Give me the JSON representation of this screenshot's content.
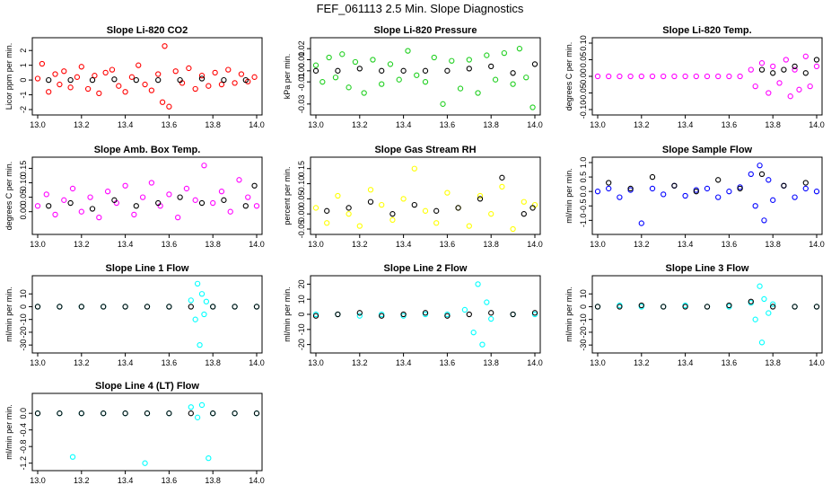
{
  "title": "FEF_061113  2.5 Min. Slope Diagnostics",
  "colors": {
    "red": "#ff0000",
    "green": "#1fcf1f",
    "magenta": "#ff00ff",
    "yellow": "#ffff00",
    "blue": "#0000ff",
    "cyan": "#00ffff",
    "black": "#000000"
  },
  "chart_data": [
    {
      "type": "scatter",
      "title": "Slope Li-820 CO2",
      "ylabel": "Licor ppm per min.",
      "xlim": [
        13.0,
        14.0
      ],
      "ylim": [
        -2,
        2.5
      ],
      "xticks": [
        "13.0",
        "13.2",
        "13.4",
        "13.6",
        "13.8",
        "14.0"
      ],
      "yticks": [
        "-2",
        "-1",
        "0",
        "1",
        "2"
      ],
      "series": [
        {
          "color": "red",
          "x": [
            13.0,
            13.02,
            13.05,
            13.08,
            13.1,
            13.12,
            13.15,
            13.18,
            13.2,
            13.23,
            13.26,
            13.28,
            13.31,
            13.34,
            13.37,
            13.4,
            13.43,
            13.46,
            13.49,
            13.52,
            13.55,
            13.57,
            13.58,
            13.6,
            13.63,
            13.66,
            13.69,
            13.72,
            13.75,
            13.78,
            13.81,
            13.84,
            13.87,
            13.9,
            13.93,
            13.96,
            13.99
          ],
          "y": [
            0.1,
            1.1,
            -0.8,
            0.4,
            -0.3,
            0.6,
            -0.5,
            0.2,
            0.9,
            -0.6,
            0.3,
            -0.9,
            0.5,
            0.7,
            -0.4,
            -0.8,
            0.2,
            1.0,
            -0.3,
            -0.7,
            0.4,
            -1.5,
            2.3,
            -1.8,
            0.6,
            -0.2,
            0.8,
            -0.6,
            0.3,
            -0.4,
            0.5,
            -0.3,
            0.7,
            -0.2,
            0.4,
            -0.1,
            0.2
          ]
        },
        {
          "color": "black",
          "x": [
            13.05,
            13.15,
            13.25,
            13.35,
            13.45,
            13.55,
            13.65,
            13.75,
            13.85,
            13.95
          ],
          "y": [
            0,
            0,
            0,
            0.05,
            0,
            0,
            0,
            0.1,
            0,
            0
          ]
        }
      ]
    },
    {
      "type": "scatter",
      "title": "Slope Li-820 Pressure",
      "ylabel": "kPa per min.",
      "xlim": [
        13.0,
        14.0
      ],
      "ylim": [
        -0.035,
        0.025
      ],
      "xticks": [
        "13.0",
        "13.2",
        "13.4",
        "13.6",
        "13.8",
        "14.0"
      ],
      "yticks": [
        "-0.03",
        "-0.01",
        "0.00",
        "0.01",
        "0.02"
      ],
      "series": [
        {
          "color": "green",
          "x": [
            13.0,
            13.03,
            13.06,
            13.09,
            13.12,
            13.15,
            13.18,
            13.22,
            13.26,
            13.3,
            13.34,
            13.38,
            13.42,
            13.46,
            13.5,
            13.54,
            13.58,
            13.62,
            13.66,
            13.7,
            13.74,
            13.78,
            13.82,
            13.86,
            13.9,
            13.93,
            13.96,
            13.99
          ],
          "y": [
            0.005,
            -0.01,
            0.012,
            -0.006,
            0.015,
            -0.015,
            0.008,
            -0.02,
            0.01,
            -0.012,
            0.006,
            -0.008,
            0.018,
            -0.004,
            -0.01,
            0.012,
            -0.03,
            0.009,
            -0.016,
            0.01,
            -0.02,
            0.014,
            -0.008,
            0.016,
            -0.012,
            0.02,
            -0.006,
            -0.033
          ]
        },
        {
          "color": "black",
          "x": [
            13.0,
            13.1,
            13.2,
            13.3,
            13.4,
            13.5,
            13.6,
            13.7,
            13.8,
            13.9,
            14.0
          ],
          "y": [
            0,
            0,
            0.002,
            0,
            0,
            0,
            0,
            0.002,
            0.004,
            -0.002,
            0.006
          ]
        }
      ]
    },
    {
      "type": "scatter",
      "title": "Slope Li-820 Temp.",
      "ylabel": "degrees C per min.",
      "xlim": [
        13.0,
        14.0
      ],
      "ylim": [
        -0.1,
        0.1
      ],
      "xticks": [
        "13.0",
        "13.2",
        "13.4",
        "13.6",
        "13.8",
        "14.0"
      ],
      "yticks": [
        "-0.10",
        "-0.05",
        "0.00",
        "0.05",
        "0.10"
      ],
      "series": [
        {
          "color": "magenta",
          "x": [
            13.0,
            13.05,
            13.1,
            13.15,
            13.2,
            13.25,
            13.3,
            13.35,
            13.4,
            13.45,
            13.5,
            13.55,
            13.6,
            13.65,
            13.7,
            13.72,
            13.75,
            13.78,
            13.8,
            13.83,
            13.86,
            13.88,
            13.9,
            13.92,
            13.95,
            13.97,
            14.0
          ],
          "y": [
            0,
            0,
            0,
            0,
            0,
            0,
            0,
            0,
            0,
            0,
            0,
            0,
            0,
            0,
            0.02,
            -0.03,
            0.04,
            -0.05,
            0.03,
            -0.02,
            0.05,
            -0.06,
            0.02,
            -0.04,
            0.06,
            -0.03,
            0.03
          ]
        },
        {
          "color": "black",
          "x": [
            13.75,
            13.8,
            13.85,
            13.9,
            13.95,
            14.0
          ],
          "y": [
            0.02,
            0.01,
            0.02,
            0.03,
            0.01,
            0.05
          ]
        }
      ]
    },
    {
      "type": "scatter",
      "title": "Slope Amb. Box Temp.",
      "ylabel": "degrees C per min.",
      "xlim": [
        13.0,
        14.0
      ],
      "ylim": [
        -0.06,
        0.17
      ],
      "xticks": [
        "13.0",
        "13.2",
        "13.4",
        "13.6",
        "13.8",
        "14.0"
      ],
      "yticks": [
        "0.00",
        "0.05",
        "0.10",
        "0.15"
      ],
      "series": [
        {
          "color": "magenta",
          "x": [
            13.0,
            13.04,
            13.08,
            13.12,
            13.16,
            13.2,
            13.24,
            13.28,
            13.32,
            13.36,
            13.4,
            13.44,
            13.48,
            13.52,
            13.56,
            13.6,
            13.64,
            13.68,
            13.72,
            13.76,
            13.8,
            13.84,
            13.88,
            13.92,
            13.96,
            14.0
          ],
          "y": [
            0.02,
            0.06,
            -0.01,
            0.04,
            0.08,
            0.0,
            0.05,
            -0.02,
            0.07,
            0.03,
            0.09,
            -0.01,
            0.05,
            0.1,
            0.02,
            0.06,
            -0.02,
            0.08,
            0.04,
            0.16,
            0.03,
            0.07,
            0.0,
            0.11,
            0.05,
            0.02
          ]
        },
        {
          "color": "black",
          "x": [
            13.05,
            13.15,
            13.25,
            13.35,
            13.45,
            13.55,
            13.65,
            13.75,
            13.85,
            13.95,
            13.99
          ],
          "y": [
            0.02,
            0.03,
            0.01,
            0.04,
            0.02,
            0.03,
            0.05,
            0.03,
            0.04,
            0.02,
            0.09
          ]
        }
      ]
    },
    {
      "type": "scatter",
      "title": "Slope Gas Stream RH",
      "ylabel": "percent per min.",
      "xlim": [
        13.0,
        14.0
      ],
      "ylim": [
        -0.05,
        0.17
      ],
      "xticks": [
        "13.0",
        "13.2",
        "13.4",
        "13.6",
        "13.8",
        "14.0"
      ],
      "yticks": [
        "-0.05",
        "0.00",
        "0.05",
        "0.10",
        "0.15"
      ],
      "series": [
        {
          "color": "yellow",
          "x": [
            13.0,
            13.05,
            13.1,
            13.15,
            13.2,
            13.25,
            13.3,
            13.35,
            13.4,
            13.45,
            13.5,
            13.55,
            13.6,
            13.65,
            13.7,
            13.75,
            13.8,
            13.85,
            13.9,
            13.95,
            14.0
          ],
          "y": [
            0.02,
            -0.03,
            0.06,
            0.0,
            -0.04,
            0.08,
            0.03,
            -0.02,
            0.05,
            0.15,
            0.01,
            -0.03,
            0.07,
            0.02,
            -0.04,
            0.06,
            0.0,
            0.09,
            -0.05,
            0.04,
            0.03
          ]
        },
        {
          "color": "black",
          "x": [
            13.05,
            13.15,
            13.25,
            13.35,
            13.45,
            13.55,
            13.65,
            13.75,
            13.85,
            13.95,
            13.99
          ],
          "y": [
            0.01,
            0.02,
            0.04,
            0.0,
            0.03,
            0.01,
            0.02,
            0.05,
            0.12,
            0.0,
            0.02
          ]
        }
      ]
    },
    {
      "type": "scatter",
      "title": "Slope Sample Flow",
      "ylabel": "ml/min per min.",
      "xlim": [
        13.0,
        14.0
      ],
      "ylim": [
        -1.3,
        1.0
      ],
      "xticks": [
        "13.0",
        "13.2",
        "13.4",
        "13.6",
        "13.8",
        "14.0"
      ],
      "yticks": [
        "-1.0",
        "-0.5",
        "0.0",
        "0.5",
        "1.0"
      ],
      "series": [
        {
          "color": "blue",
          "x": [
            13.0,
            13.05,
            13.1,
            13.15,
            13.2,
            13.25,
            13.3,
            13.35,
            13.4,
            13.45,
            13.5,
            13.55,
            13.6,
            13.65,
            13.7,
            13.72,
            13.74,
            13.76,
            13.78,
            13.8,
            13.85,
            13.9,
            13.95,
            14.0
          ],
          "y": [
            0.0,
            0.1,
            -0.2,
            0.05,
            -1.1,
            0.1,
            -0.1,
            0.2,
            -0.15,
            0.05,
            0.1,
            -0.2,
            0.0,
            0.15,
            0.6,
            -0.5,
            0.9,
            -1.0,
            0.4,
            -0.3,
            0.2,
            -0.2,
            0.1,
            0.0
          ]
        },
        {
          "color": "black",
          "x": [
            13.05,
            13.15,
            13.25,
            13.35,
            13.45,
            13.55,
            13.65,
            13.75,
            13.85,
            13.95
          ],
          "y": [
            0.3,
            0.1,
            0.5,
            0.2,
            0.0,
            0.4,
            0.1,
            0.6,
            0.2,
            0.3
          ]
        }
      ]
    },
    {
      "type": "scatter",
      "title": "Slope Line 1 Flow",
      "ylabel": "ml/min per min.",
      "xlim": [
        13.0,
        14.0
      ],
      "ylim": [
        -32,
        20
      ],
      "xticks": [
        "13.0",
        "13.2",
        "13.4",
        "13.6",
        "13.8",
        "14.0"
      ],
      "yticks": [
        "-30",
        "-20",
        "-10",
        "0",
        "10"
      ],
      "series": [
        {
          "color": "cyan",
          "x": [
            13.0,
            13.1,
            13.2,
            13.3,
            13.4,
            13.5,
            13.6,
            13.7,
            13.72,
            13.73,
            13.74,
            13.75,
            13.76,
            13.77,
            13.8,
            13.9,
            14.0
          ],
          "y": [
            0,
            0,
            0,
            0,
            0,
            0,
            0,
            5,
            -10,
            18,
            -30,
            10,
            -6,
            4,
            0,
            0,
            0
          ]
        },
        {
          "color": "black",
          "x": [
            13.0,
            13.1,
            13.2,
            13.3,
            13.4,
            13.5,
            13.6,
            13.7,
            13.8,
            13.9,
            14.0
          ],
          "y": [
            0,
            0,
            0,
            0,
            0,
            0,
            0,
            0,
            0,
            0,
            0
          ]
        }
      ]
    },
    {
      "type": "scatter",
      "title": "Slope Line 2 Flow",
      "ylabel": "ml/min per min.",
      "xlim": [
        13.0,
        14.0
      ],
      "ylim": [
        -22,
        22
      ],
      "xticks": [
        "13.0",
        "13.2",
        "13.4",
        "13.6",
        "13.8",
        "14.0"
      ],
      "yticks": [
        "-20",
        "-10",
        "0",
        "10",
        "20"
      ],
      "series": [
        {
          "color": "cyan",
          "x": [
            13.0,
            13.1,
            13.2,
            13.3,
            13.4,
            13.5,
            13.6,
            13.68,
            13.72,
            13.74,
            13.76,
            13.78,
            13.8,
            13.9,
            14.0
          ],
          "y": [
            0,
            0,
            -1,
            0,
            -1,
            0,
            0,
            3,
            -12,
            20,
            -20,
            8,
            -3,
            0,
            0
          ]
        },
        {
          "color": "black",
          "x": [
            13.0,
            13.1,
            13.2,
            13.3,
            13.4,
            13.5,
            13.6,
            13.7,
            13.8,
            13.9,
            14.0
          ],
          "y": [
            -1,
            0,
            1,
            -1,
            0,
            1,
            -1,
            0,
            1,
            0,
            1
          ]
        }
      ]
    },
    {
      "type": "scatter",
      "title": "Slope Line 3 Flow",
      "ylabel": "ml/min per min.",
      "xlim": [
        13.0,
        14.0
      ],
      "ylim": [
        -32,
        20
      ],
      "xticks": [
        "13.0",
        "13.2",
        "13.4",
        "13.6",
        "13.8",
        "14.0"
      ],
      "yticks": [
        "-30",
        "-20",
        "-10",
        "0",
        "10"
      ],
      "series": [
        {
          "color": "cyan",
          "x": [
            13.0,
            13.1,
            13.2,
            13.3,
            13.4,
            13.5,
            13.6,
            13.7,
            13.72,
            13.74,
            13.75,
            13.76,
            13.78,
            13.8,
            13.9,
            14.0
          ],
          "y": [
            0,
            1,
            0,
            0,
            1,
            0,
            0,
            3,
            -10,
            16,
            -28,
            6,
            -5,
            2,
            0,
            0
          ]
        },
        {
          "color": "black",
          "x": [
            13.0,
            13.1,
            13.2,
            13.3,
            13.4,
            13.5,
            13.6,
            13.7,
            13.8,
            13.9,
            14.0
          ],
          "y": [
            0,
            0,
            1,
            0,
            0,
            0,
            1,
            4,
            0,
            0,
            0
          ]
        }
      ]
    },
    {
      "type": "scatter",
      "title": "Slope Line 4 (LT) Flow",
      "ylabel": "ml/min per min.",
      "xlim": [
        13.0,
        14.0
      ],
      "ylim": [
        -1.25,
        0.35
      ],
      "xticks": [
        "13.0",
        "13.2",
        "13.4",
        "13.6",
        "13.8",
        "14.0"
      ],
      "yticks": [
        "-1.2",
        "-0.8",
        "-0.4",
        "0.0"
      ],
      "series": [
        {
          "color": "cyan",
          "x": [
            13.0,
            13.1,
            13.16,
            13.2,
            13.3,
            13.4,
            13.49,
            13.5,
            13.6,
            13.7,
            13.73,
            13.75,
            13.78,
            13.8,
            13.9,
            14.0
          ],
          "y": [
            0,
            0,
            -1.05,
            0,
            0,
            0,
            -1.2,
            0,
            0,
            0.15,
            -0.1,
            0.2,
            -1.08,
            0,
            0,
            0
          ]
        },
        {
          "color": "black",
          "x": [
            13.0,
            13.1,
            13.2,
            13.3,
            13.4,
            13.5,
            13.6,
            13.7,
            13.8,
            13.9,
            14.0
          ],
          "y": [
            0,
            0,
            0,
            0,
            0,
            0,
            0,
            0,
            0,
            0,
            0
          ]
        }
      ]
    }
  ]
}
